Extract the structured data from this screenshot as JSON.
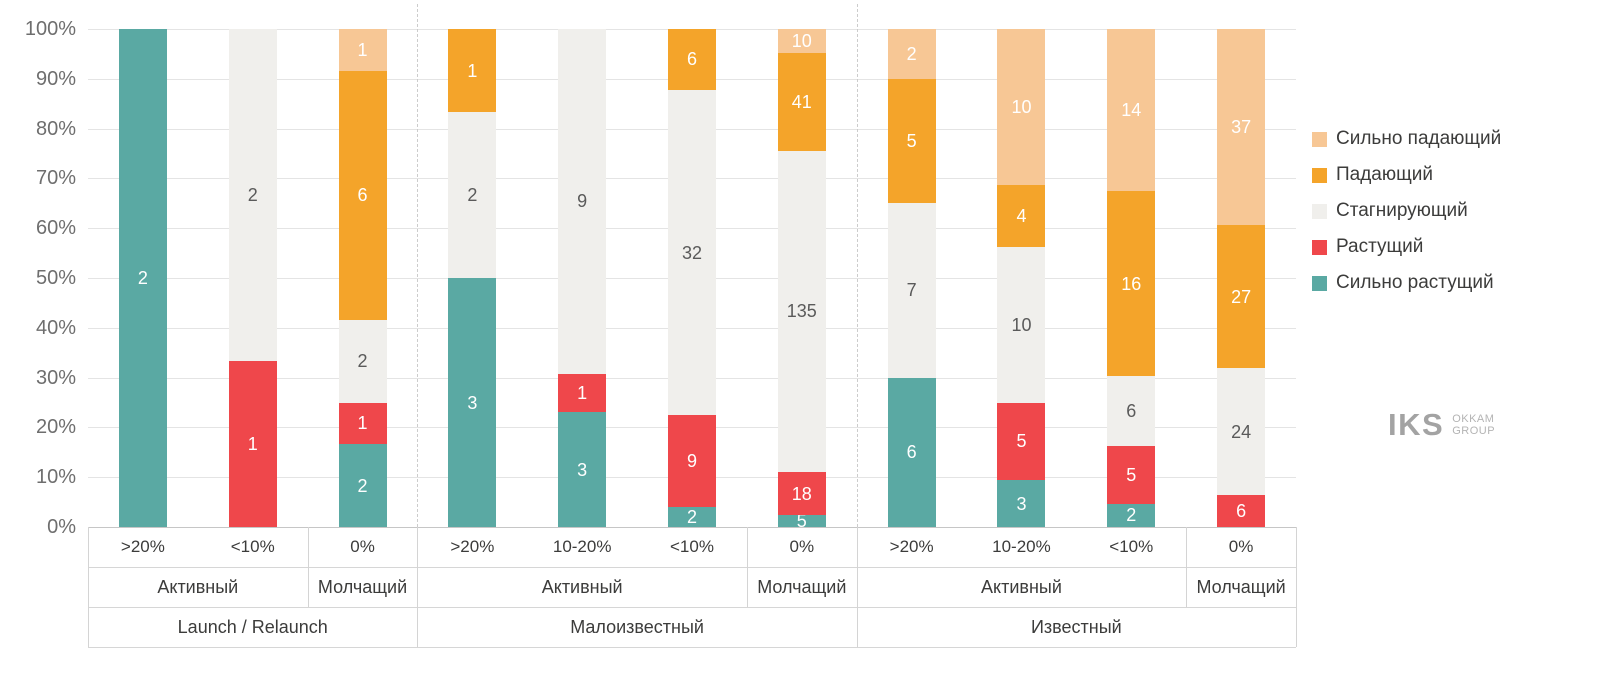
{
  "chart_data": {
    "type": "bar",
    "subtype": "100%-stacked-vertical",
    "y_ticks": [
      "100%",
      "90%",
      "80%",
      "70%",
      "60%",
      "50%",
      "40%",
      "30%",
      "20%",
      "10%",
      "0%"
    ],
    "ylim": [
      0,
      100
    ],
    "grid": "horizontal",
    "legend_position": "right",
    "series": [
      {
        "name": "Сильно растущий",
        "color": "#5AA9A3",
        "label_color": "#ffffff"
      },
      {
        "name": "Растущий",
        "color": "#EF474B",
        "label_color": "#ffffff"
      },
      {
        "name": "Стагнирующий",
        "color": "#F0EFEC",
        "label_color": "#5a5a5a"
      },
      {
        "name": "Падающий",
        "color": "#F4A42A",
        "label_color": "#ffffff"
      },
      {
        "name": "Сильно падающий",
        "color": "#F7C795",
        "label_color": "#ffffff"
      }
    ],
    "series_order_note": "values arrays are bottom-to-top: [Сильно растущий, Растущий, Стагнирующий, Падающий, Сильно падающий]",
    "legend_order_top_to_bottom": [
      "Сильно падающий",
      "Падающий",
      "Стагнирующий",
      "Растущий",
      "Сильно растущий"
    ],
    "groups": [
      {
        "label": "Launch / Relaunch",
        "subgroups": [
          {
            "label": "Активный",
            "bars": [
              {
                "tick": ">20%",
                "values": [
                  2,
                  0,
                  0,
                  0,
                  0
                ]
              },
              {
                "tick": "<10%",
                "values": [
                  0,
                  1,
                  2,
                  0,
                  0
                ]
              }
            ]
          },
          {
            "label": "Молчащий",
            "bars": [
              {
                "tick": "0%",
                "values": [
                  2,
                  1,
                  2,
                  6,
                  1
                ]
              }
            ]
          }
        ]
      },
      {
        "label": "Малоизвестный",
        "subgroups": [
          {
            "label": "Активный",
            "bars": [
              {
                "tick": ">20%",
                "values": [
                  3,
                  0,
                  2,
                  1,
                  0
                ]
              },
              {
                "tick": "10-20%",
                "values": [
                  3,
                  1,
                  9,
                  0,
                  0
                ]
              },
              {
                "tick": "<10%",
                "values": [
                  2,
                  9,
                  32,
                  6,
                  0
                ]
              }
            ]
          },
          {
            "label": "Молчащий",
            "bars": [
              {
                "tick": "0%",
                "values": [
                  5,
                  18,
                  135,
                  41,
                  10
                ]
              }
            ]
          }
        ]
      },
      {
        "label": "Известный",
        "subgroups": [
          {
            "label": "Активный",
            "bars": [
              {
                "tick": ">20%",
                "values": [
                  6,
                  0,
                  7,
                  5,
                  2
                ]
              },
              {
                "tick": "10-20%",
                "values": [
                  3,
                  5,
                  10,
                  4,
                  10
                ]
              },
              {
                "tick": "<10%",
                "values": [
                  2,
                  5,
                  6,
                  16,
                  14
                ]
              }
            ]
          },
          {
            "label": "Молчащий",
            "bars": [
              {
                "tick": "0%",
                "values": [
                  0,
                  6,
                  24,
                  27,
                  37
                ]
              }
            ]
          }
        ]
      }
    ]
  },
  "logo": {
    "main": "IKS",
    "line1": "OKKAM",
    "line2": "GROUP"
  }
}
